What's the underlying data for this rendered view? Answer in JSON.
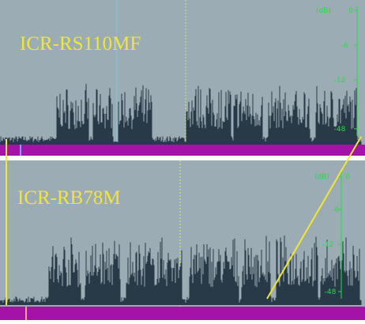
{
  "tracks": [
    {
      "name": "ICR-RS110MF",
      "scale": {
        "unit": "(dB)",
        "labels": [
          "0",
          "-6",
          "-12",
          "-48"
        ]
      }
    },
    {
      "name": "ICR-RB78M",
      "scale": {
        "unit": "(dB)",
        "labels": [
          "0",
          "-6",
          "-12",
          "-48"
        ]
      }
    }
  ]
}
